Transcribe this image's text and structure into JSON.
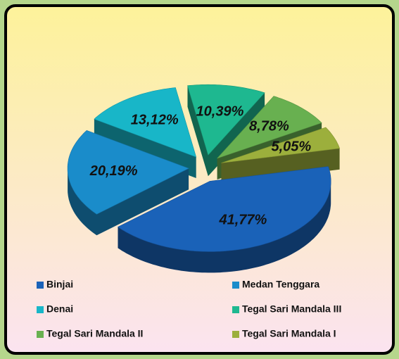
{
  "chart_data": {
    "type": "pie",
    "categories": [
      "Binjai",
      "Medan Tenggara",
      "Denai",
      "Tegal Sari Mandala III",
      "Tegal Sari Mandala II",
      "Tegal Sari Mandala I"
    ],
    "values": [
      41.77,
      20.19,
      13.12,
      10.39,
      8.78,
      5.05
    ],
    "value_labels": [
      "41,77%",
      "20,19%",
      "13,12%",
      "10,39%",
      "8,78%",
      "5,05%"
    ],
    "colors": [
      "#1a62b8",
      "#1a8cca",
      "#18b6c8",
      "#1eb890",
      "#68b050",
      "#9caf3c"
    ]
  }
}
